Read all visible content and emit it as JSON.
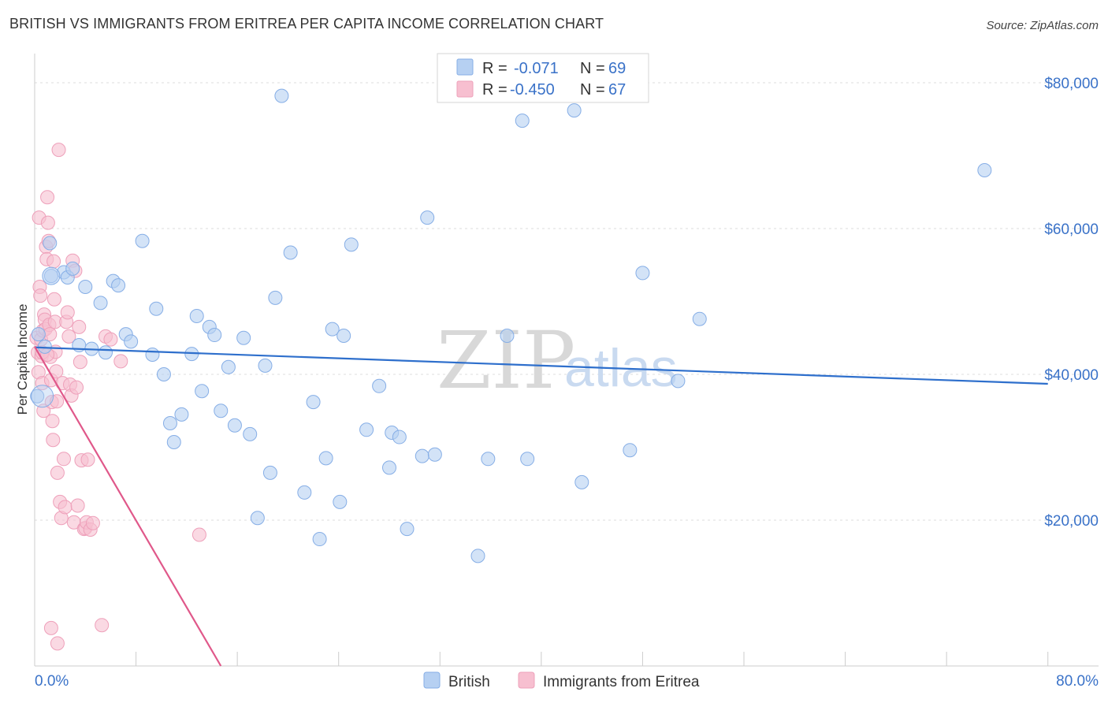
{
  "title": "BRITISH VS IMMIGRANTS FROM ERITREA PER CAPITA INCOME CORRELATION CHART",
  "source": "Source: ZipAtlas.com",
  "colors": {
    "british_fill": "#b6d0f2",
    "british_stroke": "#86aee6",
    "british_line": "#2e6fcc",
    "eritrea_fill": "#f7bfd0",
    "eritrea_stroke": "#eea0ba",
    "eritrea_line": "#e0588a",
    "axis_text": "#3a72c8",
    "grid": "#dddddd"
  },
  "stats": {
    "r_label": "R =",
    "n_label": "N =",
    "british_r": "-0.071",
    "british_n": "69",
    "eritrea_r": "-0.450",
    "eritrea_n": "67"
  },
  "watermark": {
    "zip": "ZIP",
    "atlas": "atlas"
  },
  "chart_data": {
    "type": "scatter",
    "title": "BRITISH VS IMMIGRANTS FROM ERITREA PER CAPITA INCOME CORRELATION CHART",
    "xlabel": "",
    "ylabel": "Per Capita Income",
    "xlim": [
      0,
      80
    ],
    "ylim": [
      0,
      84000
    ],
    "x_tick_labels": [
      "0.0%",
      "80.0%"
    ],
    "y_ticks": [
      20000,
      40000,
      60000,
      80000
    ],
    "y_tick_labels": [
      "$20,000",
      "$40,000",
      "$60,000",
      "$80,000"
    ],
    "grid": true,
    "legend_position": "bottom-center",
    "series": [
      {
        "name": "British",
        "trend": {
          "x": [
            0,
            80
          ],
          "y": [
            43700,
            38700
          ]
        },
        "points": [
          [
            0.2,
            37000
          ],
          [
            0.3,
            45500
          ],
          [
            1.2,
            58000
          ],
          [
            1.3,
            53500
          ],
          [
            2.3,
            54000
          ],
          [
            2.6,
            53300
          ],
          [
            3.0,
            54500
          ],
          [
            3.5,
            44000
          ],
          [
            4.0,
            52000
          ],
          [
            4.5,
            43500
          ],
          [
            5.2,
            49800
          ],
          [
            5.6,
            43000
          ],
          [
            6.2,
            52800
          ],
          [
            6.6,
            52200
          ],
          [
            7.2,
            45500
          ],
          [
            7.6,
            44500
          ],
          [
            8.5,
            58300
          ],
          [
            9.3,
            42700
          ],
          [
            9.6,
            49000
          ],
          [
            10.2,
            40000
          ],
          [
            10.7,
            33300
          ],
          [
            11.0,
            30700
          ],
          [
            11.6,
            34500
          ],
          [
            12.4,
            42800
          ],
          [
            12.8,
            48000
          ],
          [
            13.2,
            37700
          ],
          [
            13.8,
            46500
          ],
          [
            14.2,
            45400
          ],
          [
            14.7,
            35000
          ],
          [
            15.3,
            41000
          ],
          [
            15.8,
            33000
          ],
          [
            16.5,
            45000
          ],
          [
            17.0,
            31800
          ],
          [
            17.6,
            20300
          ],
          [
            18.2,
            41200
          ],
          [
            18.6,
            26500
          ],
          [
            19.0,
            50500
          ],
          [
            19.5,
            78200
          ],
          [
            20.2,
            56700
          ],
          [
            21.3,
            23800
          ],
          [
            22.0,
            36200
          ],
          [
            22.5,
            17400
          ],
          [
            23.0,
            28500
          ],
          [
            23.5,
            46200
          ],
          [
            24.1,
            22500
          ],
          [
            24.4,
            45300
          ],
          [
            25.0,
            57800
          ],
          [
            26.2,
            32400
          ],
          [
            27.2,
            38400
          ],
          [
            28.0,
            27200
          ],
          [
            28.2,
            32000
          ],
          [
            28.8,
            31400
          ],
          [
            29.4,
            18800
          ],
          [
            30.6,
            28800
          ],
          [
            31.0,
            61500
          ],
          [
            31.6,
            29000
          ],
          [
            35.0,
            15100
          ],
          [
            35.8,
            28400
          ],
          [
            37.3,
            45300
          ],
          [
            38.5,
            74800
          ],
          [
            38.9,
            28400
          ],
          [
            42.6,
            76200
          ],
          [
            43.2,
            25200
          ],
          [
            47.0,
            29600
          ],
          [
            48.0,
            53900
          ],
          [
            50.8,
            39100
          ],
          [
            52.5,
            47600
          ],
          [
            75.0,
            68000
          ],
          [
            0.8,
            43800
          ]
        ]
      },
      {
        "name": "Immigrants from Eritrea",
        "trend": {
          "x": [
            0,
            14.7
          ],
          "y": [
            43800,
            0
          ]
        },
        "points": [
          [
            0.15,
            45000
          ],
          [
            0.25,
            43000
          ],
          [
            0.3,
            40300
          ],
          [
            0.35,
            61500
          ],
          [
            0.4,
            52000
          ],
          [
            0.45,
            50800
          ],
          [
            0.5,
            44800
          ],
          [
            0.55,
            42500
          ],
          [
            0.6,
            38800
          ],
          [
            0.65,
            46000
          ],
          [
            0.7,
            35000
          ],
          [
            0.75,
            48200
          ],
          [
            0.8,
            47500
          ],
          [
            0.85,
            46200
          ],
          [
            0.9,
            57500
          ],
          [
            0.95,
            55800
          ],
          [
            1.0,
            64300
          ],
          [
            1.05,
            60800
          ],
          [
            1.1,
            58300
          ],
          [
            1.15,
            46800
          ],
          [
            1.2,
            45500
          ],
          [
            1.25,
            42400
          ],
          [
            1.3,
            39200
          ],
          [
            1.35,
            36200
          ],
          [
            1.4,
            33600
          ],
          [
            1.45,
            31000
          ],
          [
            1.5,
            55500
          ],
          [
            1.55,
            50300
          ],
          [
            1.6,
            47200
          ],
          [
            1.65,
            43100
          ],
          [
            1.7,
            40400
          ],
          [
            1.75,
            36300
          ],
          [
            1.8,
            26500
          ],
          [
            1.9,
            70800
          ],
          [
            2.0,
            22500
          ],
          [
            2.1,
            20300
          ],
          [
            2.2,
            38800
          ],
          [
            2.3,
            28400
          ],
          [
            2.4,
            21800
          ],
          [
            2.5,
            47200
          ],
          [
            2.6,
            48500
          ],
          [
            2.7,
            45200
          ],
          [
            2.8,
            38600
          ],
          [
            2.9,
            37100
          ],
          [
            3.0,
            55600
          ],
          [
            3.1,
            19700
          ],
          [
            3.2,
            54200
          ],
          [
            3.3,
            38200
          ],
          [
            3.4,
            22000
          ],
          [
            3.5,
            46500
          ],
          [
            3.6,
            41700
          ],
          [
            3.7,
            28200
          ],
          [
            3.9,
            18800
          ],
          [
            4.0,
            18900
          ],
          [
            4.1,
            19700
          ],
          [
            4.2,
            28300
          ],
          [
            4.4,
            18700
          ],
          [
            4.6,
            19600
          ],
          [
            5.3,
            5600
          ],
          [
            5.6,
            45200
          ],
          [
            6.0,
            44800
          ],
          [
            6.8,
            41800
          ],
          [
            13.0,
            18000
          ],
          [
            1.3,
            5200
          ],
          [
            1.8,
            3100
          ],
          [
            0.6,
            43000
          ],
          [
            1.0,
            42700
          ]
        ]
      }
    ]
  }
}
